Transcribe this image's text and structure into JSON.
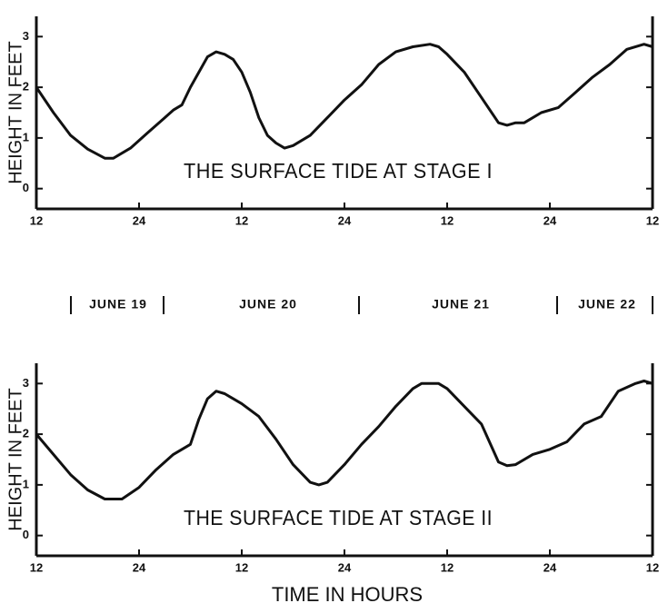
{
  "chart_data": [
    {
      "type": "line",
      "ylabel": "HEIGHT IN FEET",
      "annotation": "THE SURFACE TIDE AT STAGE I",
      "color": "#111111",
      "xlim": [
        0,
        72
      ],
      "xticks": [
        {
          "value": 0,
          "label": "12"
        },
        {
          "value": 12,
          "label": "24"
        },
        {
          "value": 24,
          "label": "12"
        },
        {
          "value": 36,
          "label": "24"
        },
        {
          "value": 48,
          "label": "12"
        },
        {
          "value": 60,
          "label": "24"
        },
        {
          "value": 72,
          "label": "12"
        }
      ],
      "ylim": [
        -0.4,
        3.4
      ],
      "yticks": [
        0,
        1,
        2,
        3
      ],
      "x": [
        0,
        2,
        4,
        6,
        8,
        9,
        11,
        13,
        15,
        16,
        17,
        18,
        19,
        20,
        21,
        22,
        23,
        24,
        25,
        26,
        27,
        28,
        29,
        30,
        32,
        34,
        36,
        38,
        40,
        42,
        44,
        46,
        47,
        48,
        50,
        52,
        54,
        55,
        56,
        57,
        59,
        61,
        63,
        65,
        67,
        69,
        71,
        72
      ],
      "values": [
        2.0,
        1.5,
        1.05,
        0.78,
        0.6,
        0.6,
        0.8,
        1.1,
        1.4,
        1.55,
        1.65,
        2.0,
        2.3,
        2.6,
        2.7,
        2.65,
        2.55,
        2.3,
        1.9,
        1.4,
        1.05,
        0.9,
        0.8,
        0.85,
        1.05,
        1.4,
        1.75,
        2.05,
        2.45,
        2.7,
        2.8,
        2.85,
        2.8,
        2.65,
        2.3,
        1.8,
        1.3,
        1.25,
        1.3,
        1.3,
        1.5,
        1.6,
        1.9,
        2.2,
        2.45,
        2.75,
        2.85,
        2.8
      ]
    },
    {
      "type": "line",
      "ylabel": "HEIGHT IN FEET",
      "annotation": "THE SURFACE TIDE AT STAGE II",
      "xlabel": "TIME IN HOURS",
      "color": "#111111",
      "date_labels": [
        "JUNE 19",
        "JUNE 20",
        "JUNE 21",
        "JUNE 22"
      ],
      "xlim": [
        0,
        72
      ],
      "xticks": [
        {
          "value": 0,
          "label": "12"
        },
        {
          "value": 12,
          "label": "24"
        },
        {
          "value": 24,
          "label": "12"
        },
        {
          "value": 36,
          "label": "24"
        },
        {
          "value": 48,
          "label": "12"
        },
        {
          "value": 60,
          "label": "24"
        },
        {
          "value": 72,
          "label": "12"
        }
      ],
      "ylim": [
        -0.4,
        3.4
      ],
      "yticks": [
        0,
        1,
        2,
        3
      ],
      "x": [
        0,
        2,
        4,
        6,
        8,
        10,
        12,
        14,
        16,
        18,
        19,
        20,
        21,
        22,
        24,
        26,
        28,
        30,
        32,
        33,
        34,
        36,
        38,
        40,
        42,
        44,
        45,
        47,
        48,
        50,
        52,
        54,
        55,
        56,
        58,
        60,
        62,
        64,
        66,
        68,
        70,
        71,
        72
      ],
      "values": [
        2.0,
        1.6,
        1.2,
        0.9,
        0.72,
        0.72,
        0.95,
        1.3,
        1.6,
        1.8,
        2.3,
        2.7,
        2.85,
        2.8,
        2.6,
        2.35,
        1.9,
        1.4,
        1.05,
        1.0,
        1.05,
        1.4,
        1.8,
        2.15,
        2.55,
        2.9,
        3.0,
        3.0,
        2.9,
        2.55,
        2.2,
        1.45,
        1.38,
        1.4,
        1.6,
        1.7,
        1.85,
        2.2,
        2.35,
        2.85,
        3.0,
        3.05,
        3.0
      ]
    }
  ]
}
